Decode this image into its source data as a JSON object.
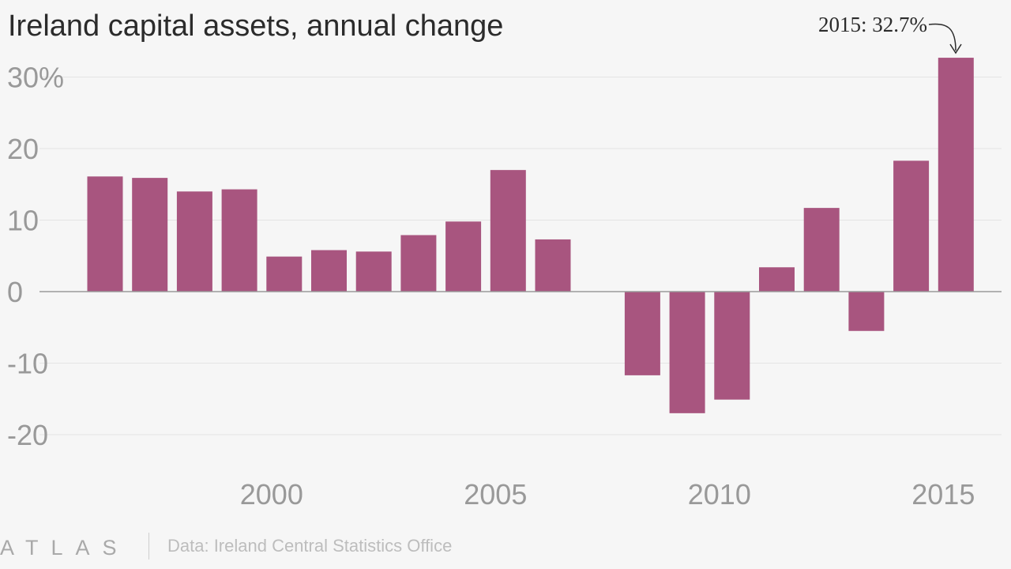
{
  "chart_data": {
    "type": "bar",
    "title": "Ireland capital assets, annual change",
    "categories": [
      1996,
      1997,
      1998,
      1999,
      2000,
      2001,
      2002,
      2003,
      2004,
      2005,
      2006,
      2007,
      2008,
      2009,
      2010,
      2011,
      2012,
      2013,
      2014,
      2015
    ],
    "values": [
      16.1,
      15.9,
      14.0,
      14.3,
      4.9,
      5.8,
      5.6,
      7.9,
      9.8,
      17.0,
      7.3,
      0.0,
      -11.7,
      -17.0,
      -15.1,
      3.4,
      11.7,
      -5.5,
      18.3,
      32.7
    ],
    "ylim": [
      -20,
      30
    ],
    "yticks": [
      30,
      20,
      10,
      0,
      -10,
      -20
    ],
    "ytick_labels": [
      "30%",
      "20",
      "10",
      "0",
      "-10",
      "-20"
    ],
    "xticks": [
      2000,
      2005,
      2010,
      2015
    ],
    "xtick_labels": [
      "2000",
      "2005",
      "2010",
      "2015"
    ],
    "xlabel": "",
    "ylabel": "",
    "grid": true,
    "bar_color": "#a8557f",
    "annotation": {
      "text": "2015: 32.7%",
      "target_year": 2015
    }
  },
  "footer": {
    "brand": "ATLAS",
    "source": "Data: Ireland Central Statistics Office"
  },
  "colors": {
    "background": "#f6f6f6",
    "bar": "#a8557f",
    "grid": "#e4e4e4",
    "zero_line": "#9a9a9a",
    "tick_text": "#999999"
  }
}
